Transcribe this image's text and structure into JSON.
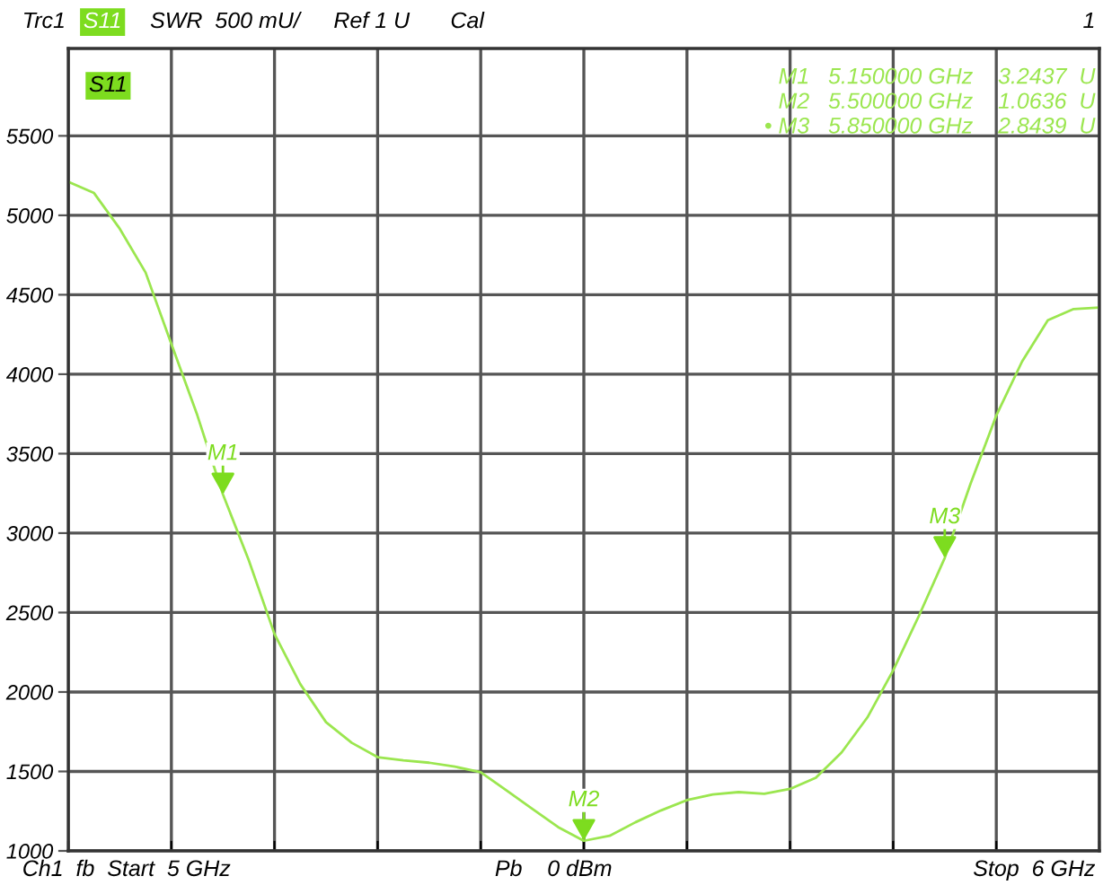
{
  "chart_data": {
    "type": "line",
    "categories": [
      null,
      null,
      null,
      null,
      null,
      null,
      null,
      null,
      null,
      null,
      null,
      null,
      null,
      null,
      null,
      null,
      null,
      null,
      null,
      null,
      null,
      null,
      null,
      null,
      null,
      null,
      null,
      null,
      null,
      null,
      null,
      null,
      null,
      null,
      null,
      null,
      null,
      null,
      null,
      null,
      null
    ],
    "ylim": [
      1000,
      6050
    ],
    "yticks": [
      1000,
      1500,
      2000,
      2500,
      3000,
      3500,
      4000,
      4500,
      5000,
      5500
    ],
    "grid": true,
    "legend": false,
    "marker": "none",
    "line_style": "solid",
    "series": [
      {
        "color": "#9be64f",
        "values": [
          5211,
          5140,
          4915,
          4640,
          4190,
          3745,
          3243.7,
          2830,
          2365,
          2050,
          1810,
          1680,
          1590,
          1570,
          1555,
          1530,
          1495,
          1380,
          1265,
          1150,
          1063.6,
          1095,
          1180,
          1255,
          1320,
          1355,
          1370,
          1360,
          1390,
          1460,
          1620,
          1840,
          2136,
          2480,
          2843.9,
          3310,
          3740,
          4080,
          4340,
          4410,
          4420
        ]
      }
    ],
    "annotations": [
      "Trc1",
      "S11",
      "SWR  500 mU/",
      "Ref 1 U",
      "Cal",
      "1",
      "S11",
      "M1   5.150000 GHz    3.2437  U",
      "M2   5.500000 GHz    1.0636  U",
      "• M3   5.850000 GHz    2.8439  U",
      "Ch1  fb  Start  5 GHz",
      "Pb    0 dBm",
      "Stop  6 GHz",
      {
        "text": "M1",
        "y": 3243.7
      },
      {
        "text": "M2",
        "y": 1063.6
      },
      {
        "text": "M3",
        "y": 2843.9
      }
    ]
  }
}
